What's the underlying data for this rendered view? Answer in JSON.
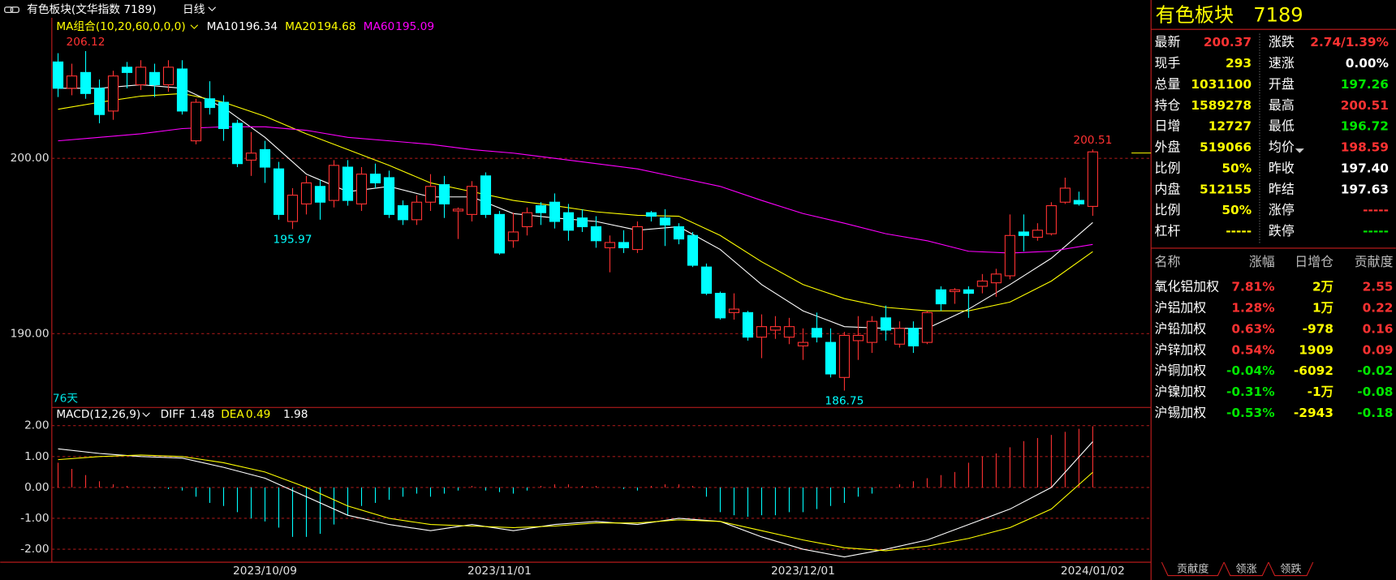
{
  "top_bar": {
    "title": "有色板块(文华指数 7189)",
    "period": "日线"
  },
  "chart_data": {
    "type": "candlestick",
    "up_color": "#ff3232",
    "down_color": "#00ffff",
    "categories": [
      null,
      null,
      null,
      null,
      null,
      null,
      null,
      null,
      null,
      null,
      null,
      null,
      null,
      null,
      null,
      "2023/10/09",
      null,
      null,
      null,
      null,
      null,
      null,
      null,
      null,
      null,
      null,
      null,
      null,
      null,
      null,
      null,
      null,
      "2023/11/01",
      null,
      null,
      null,
      null,
      null,
      null,
      null,
      null,
      null,
      null,
      null,
      null,
      null,
      null,
      null,
      null,
      null,
      null,
      null,
      null,
      null,
      "2023/12/01",
      null,
      null,
      null,
      null,
      null,
      null,
      null,
      null,
      null,
      null,
      null,
      null,
      null,
      null,
      null,
      null,
      null,
      null,
      null,
      null,
      "2024/01/02"
    ],
    "open": [
      205.5,
      204.0,
      204.9,
      204.0,
      202.7,
      205.2,
      204.2,
      204.9,
      204.2,
      205.1,
      201.0,
      203.4,
      203.2,
      202.0,
      199.9,
      200.5,
      199.4,
      196.4,
      197.4,
      198.4,
      197.6,
      199.5,
      197.4,
      199.1,
      198.9,
      197.3,
      196.5,
      197.5,
      198.5,
      197.0,
      196.8,
      199.0,
      196.8,
      195.3,
      196.1,
      197.3,
      197.5,
      196.9,
      196.6,
      196.1,
      194.9,
      195.2,
      194.8,
      196.9,
      196.6,
      196.1,
      195.6,
      193.8,
      192.3,
      191.2,
      191.2,
      189.8,
      190.2,
      189.8,
      189.3,
      190.3,
      189.5,
      187.5,
      189.6,
      189.5,
      190.9,
      189.4,
      190.3,
      189.5,
      192.5,
      192.4,
      192.5,
      192.7,
      192.9,
      193.3,
      195.8,
      195.5,
      195.7,
      197.5,
      197.6,
      197.26
    ],
    "high": [
      206.0,
      205.4,
      206.12,
      204.5,
      205.0,
      205.5,
      205.6,
      205.4,
      205.6,
      205.6,
      203.4,
      204.4,
      203.6,
      202.2,
      201.5,
      201.0,
      199.8,
      198.3,
      199.0,
      198.8,
      199.9,
      199.9,
      199.5,
      199.7,
      199.3,
      197.6,
      197.9,
      199.1,
      199.0,
      197.2,
      198.7,
      199.2,
      197.0,
      196.9,
      197.2,
      197.5,
      198.0,
      197.4,
      197.1,
      196.7,
      195.6,
      195.9,
      196.4,
      197.0,
      197.1,
      196.3,
      195.8,
      194.0,
      192.4,
      192.3,
      191.3,
      191.1,
      191.0,
      190.9,
      190.3,
      191.2,
      190.3,
      190.1,
      191.0,
      191.0,
      191.6,
      190.7,
      190.7,
      191.3,
      192.7,
      192.6,
      192.7,
      193.4,
      193.7,
      196.8,
      196.8,
      196.3,
      197.5,
      198.9,
      198.1,
      200.51
    ],
    "low": [
      203.5,
      203.6,
      203.4,
      202.0,
      202.2,
      204.0,
      203.9,
      203.5,
      203.8,
      202.5,
      200.8,
      202.5,
      201.0,
      199.5,
      199.0,
      198.6,
      196.5,
      195.97,
      196.8,
      196.5,
      197.2,
      197.3,
      197.0,
      198.3,
      196.6,
      196.2,
      196.2,
      197.0,
      196.6,
      195.4,
      196.4,
      196.6,
      194.5,
      194.9,
      195.6,
      196.2,
      196.0,
      195.3,
      195.8,
      194.9,
      193.5,
      194.6,
      194.6,
      196.4,
      195.0,
      195.1,
      193.8,
      192.2,
      190.8,
      190.8,
      189.6,
      188.6,
      189.7,
      189.4,
      188.5,
      189.5,
      187.5,
      186.75,
      188.5,
      188.9,
      189.6,
      189.2,
      188.9,
      189.4,
      191.3,
      191.7,
      190.9,
      192.3,
      192.1,
      193.1,
      194.7,
      195.3,
      195.6,
      197.4,
      197.3,
      196.72
    ],
    "close": [
      204.0,
      204.7,
      203.7,
      202.5,
      204.7,
      204.9,
      205.2,
      204.2,
      205.2,
      202.7,
      203.2,
      202.9,
      201.7,
      199.7,
      200.3,
      199.5,
      196.8,
      197.9,
      198.6,
      197.5,
      199.6,
      197.6,
      199.1,
      198.6,
      196.8,
      196.5,
      197.5,
      198.4,
      197.4,
      197.1,
      198.4,
      196.8,
      194.6,
      195.8,
      196.9,
      196.9,
      196.4,
      195.9,
      196.1,
      195.3,
      195.2,
      194.9,
      196.1,
      196.7,
      196.2,
      195.4,
      193.9,
      192.3,
      190.9,
      191.4,
      189.8,
      190.4,
      190.4,
      190.4,
      189.5,
      189.8,
      187.7,
      189.9,
      189.9,
      190.7,
      190.2,
      190.3,
      189.3,
      191.2,
      191.7,
      192.5,
      192.3,
      193.0,
      193.4,
      195.6,
      195.6,
      195.9,
      197.3,
      198.3,
      197.4,
      200.37
    ],
    "ylim": [
      185.79,
      208.02
    ],
    "yticks": [
      {
        "value": 190,
        "label": "190.00"
      },
      {
        "value": 200,
        "label": "200.00"
      }
    ],
    "grid": true,
    "period_label": "76天",
    "ma": {
      "label": "MA组合(10,20,60,0,0,0)",
      "x": [
        0,
        3,
        6,
        9,
        12,
        15,
        18,
        21,
        24,
        27,
        30,
        33,
        36,
        39,
        42,
        45,
        48,
        51,
        54,
        57,
        60,
        63,
        66,
        69,
        72,
        75
      ],
      "series": [
        {
          "name": "MA10",
          "color": "#ffffff",
          "values": [
            204.0,
            204.0,
            204.2,
            204.0,
            202.9,
            201.2,
            199.1,
            198.1,
            198.4,
            197.8,
            197.8,
            196.85,
            196.6,
            196.4,
            195.9,
            196.1,
            194.8,
            192.8,
            191.3,
            190.4,
            190.3,
            190.3,
            191.4,
            192.8,
            194.3,
            196.34
          ]
        },
        {
          "name": "MA20",
          "color": "#ffff00",
          "values": [
            202.8,
            203.2,
            203.55,
            203.7,
            203.2,
            202.4,
            201.4,
            200.5,
            199.6,
            198.6,
            198.1,
            197.6,
            197.3,
            196.95,
            196.75,
            196.7,
            195.6,
            194.1,
            192.8,
            192.0,
            191.5,
            191.3,
            191.3,
            191.8,
            193.0,
            194.68
          ]
        },
        {
          "name": "MA60",
          "color": "#ff00ff",
          "values": [
            201.0,
            201.2,
            201.4,
            201.7,
            201.8,
            201.8,
            201.6,
            201.2,
            201.0,
            200.8,
            200.5,
            200.3,
            200.0,
            199.7,
            199.4,
            198.9,
            198.4,
            197.6,
            196.85,
            196.3,
            195.7,
            195.3,
            194.7,
            194.6,
            194.7,
            195.09
          ]
        }
      ]
    },
    "macd": {
      "label": "MACD(12,26,9)",
      "ylim": [
        -2.42,
        2.59
      ],
      "yticks": [
        {
          "value": 2,
          "label": "2.00"
        },
        {
          "value": 1,
          "label": "1.00"
        },
        {
          "value": 0,
          "label": "0.00"
        },
        {
          "value": -1,
          "label": "-1.00"
        },
        {
          "value": -2,
          "label": "-2.00"
        }
      ],
      "histogram": [
        0.8,
        0.6,
        0.4,
        0.2,
        0.1,
        0.05,
        0.0,
        -0.02,
        -0.05,
        -0.1,
        -0.3,
        -0.5,
        -0.6,
        -0.8,
        -1.0,
        -1.1,
        -1.3,
        -1.6,
        -1.6,
        -1.5,
        -1.2,
        -0.9,
        -0.6,
        -0.5,
        -0.4,
        -0.3,
        -0.2,
        -0.3,
        -0.2,
        -0.1,
        0.05,
        -0.1,
        -0.15,
        -0.2,
        -0.1,
        0.05,
        0.1,
        0.1,
        0.05,
        0.05,
        0.0,
        -0.05,
        -0.1,
        0.05,
        0.1,
        0.1,
        0.05,
        -0.3,
        -0.8,
        -0.9,
        -0.95,
        -0.9,
        -0.9,
        -0.8,
        -0.8,
        -0.7,
        -0.6,
        -0.5,
        -0.3,
        -0.2,
        0.0,
        0.1,
        0.2,
        0.3,
        0.4,
        0.5,
        0.8,
        1.0,
        1.1,
        1.3,
        1.5,
        1.6,
        1.7,
        1.8,
        1.9,
        1.98
      ],
      "x": [
        0,
        3,
        6,
        9,
        12,
        15,
        18,
        21,
        24,
        27,
        30,
        33,
        36,
        39,
        42,
        45,
        48,
        51,
        54,
        57,
        60,
        63,
        66,
        69,
        72,
        75
      ],
      "series": [
        {
          "name": "DIFF",
          "color": "#ffffff",
          "values": [
            1.25,
            1.1,
            1.0,
            0.95,
            0.65,
            0.3,
            -0.3,
            -0.9,
            -1.2,
            -1.4,
            -1.2,
            -1.4,
            -1.2,
            -1.1,
            -1.2,
            -1.0,
            -1.1,
            -1.6,
            -2.0,
            -2.25,
            -2.0,
            -1.7,
            -1.2,
            -0.7,
            0.0,
            1.48
          ]
        },
        {
          "name": "DEA",
          "color": "#ffff00",
          "values": [
            0.9,
            1.0,
            1.05,
            1.0,
            0.8,
            0.5,
            0.0,
            -0.6,
            -1.0,
            -1.2,
            -1.25,
            -1.3,
            -1.25,
            -1.15,
            -1.15,
            -1.05,
            -1.1,
            -1.4,
            -1.7,
            -1.95,
            -2.05,
            -1.9,
            -1.65,
            -1.3,
            -0.7,
            0.49
          ]
        }
      ]
    }
  },
  "quote": {
    "name": "有色板块",
    "code": "7189",
    "rows": [
      [
        {
          "label": "最新",
          "value": "200.37",
          "color": "#ff3232"
        },
        {
          "label": "涨跌",
          "value": "2.74/1.39%",
          "color": "#ff3232"
        }
      ],
      [
        {
          "label": "现手",
          "value": "293",
          "color": "#ffff00"
        },
        {
          "label": "速涨",
          "value": "0.00%",
          "color": "#ffffff"
        }
      ],
      [
        {
          "label": "总量",
          "value": "1031100",
          "color": "#ffff00"
        },
        {
          "label": "开盘",
          "value": "197.26",
          "color": "#00e600"
        }
      ],
      [
        {
          "label": "持仓",
          "value": "1589278",
          "color": "#ffff00"
        },
        {
          "label": "最高",
          "value": "200.51",
          "color": "#ff3232"
        }
      ],
      [
        {
          "label": "日增",
          "value": "12727",
          "color": "#ffff00"
        },
        {
          "label": "最低",
          "value": "196.72",
          "color": "#00e600"
        }
      ],
      [
        {
          "label": "外盘",
          "value": "519066",
          "color": "#ffff00"
        },
        {
          "label": "均价",
          "value": "198.59",
          "color": "#ff3232"
        }
      ],
      [
        {
          "label": "比例",
          "value": "50%",
          "color": "#ffff00"
        },
        {
          "label": "昨收",
          "value": "197.40",
          "color": "#ffffff"
        }
      ],
      [
        {
          "label": "内盘",
          "value": "512155",
          "color": "#ffff00"
        },
        {
          "label": "昨结",
          "value": "197.63",
          "color": "#ffffff"
        }
      ],
      [
        {
          "label": "比例",
          "value": "50%",
          "color": "#ffff00"
        },
        {
          "label": "涨停",
          "value": "-----",
          "color": "#ff3232"
        }
      ],
      [
        {
          "label": "杠杆",
          "value": "-----",
          "color": "#ffff00"
        },
        {
          "label": "跌停",
          "value": "-----",
          "color": "#00e600"
        }
      ]
    ]
  },
  "sector_table": {
    "header": [
      "名称",
      "涨幅",
      "日增仓",
      "贡献度"
    ],
    "rows": [
      {
        "cells": [
          "氧化铝加权",
          "7.81%",
          "2万",
          "2.55"
        ],
        "color": "#ff3232"
      },
      {
        "cells": [
          "沪铝加权",
          "1.28%",
          "1万",
          "0.22"
        ],
        "color": "#ff3232"
      },
      {
        "cells": [
          "沪铅加权",
          "0.63%",
          "-978",
          "0.16"
        ],
        "color": "#ff3232"
      },
      {
        "cells": [
          "沪锌加权",
          "0.54%",
          "1909",
          "0.09"
        ],
        "color": "#ff3232"
      },
      {
        "cells": [
          "沪铜加权",
          "-0.04%",
          "-6092",
          "-0.02"
        ],
        "color": "#00e600"
      },
      {
        "cells": [
          "沪镍加权",
          "-0.31%",
          "-1万",
          "-0.08"
        ],
        "color": "#00e600"
      },
      {
        "cells": [
          "沪锡加权",
          "-0.53%",
          "-2943",
          "-0.18"
        ],
        "color": "#00e600"
      }
    ]
  },
  "tabs": [
    "贡献度",
    "领涨",
    "领跌"
  ]
}
